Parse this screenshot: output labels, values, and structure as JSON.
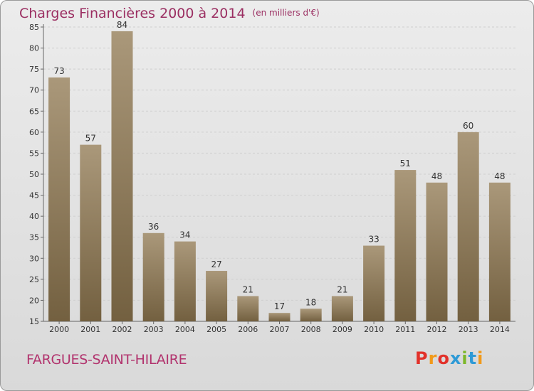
{
  "title": "Charges Financières 2000 à 2014",
  "subtitle": "(en milliers d'€)",
  "place": "FARGUES-SAINT-HILAIRE",
  "logo": {
    "text": "Proxiti",
    "colors": [
      "#e2312a",
      "#f19a1b",
      "#e2312a",
      "#2e9ad6",
      "#7cb729",
      "#2e9ad6",
      "#f19a1b"
    ]
  },
  "colors": {
    "title": "#9b2f62",
    "place": "#b2346e",
    "bar_top": "#aa987a",
    "bar_bottom": "#736040"
  },
  "chart_data": {
    "type": "bar",
    "categories": [
      "2000",
      "2001",
      "2002",
      "2003",
      "2004",
      "2005",
      "2006",
      "2007",
      "2008",
      "2009",
      "2010",
      "2011",
      "2012",
      "2013",
      "2014"
    ],
    "values": [
      73,
      57,
      84,
      36,
      34,
      27,
      21,
      17,
      18,
      21,
      33,
      51,
      48,
      60,
      48
    ],
    "ylim": [
      15,
      85
    ],
    "yticks": [
      15,
      20,
      25,
      30,
      35,
      40,
      45,
      50,
      55,
      60,
      65,
      70,
      75,
      80,
      85
    ],
    "grid": true
  }
}
